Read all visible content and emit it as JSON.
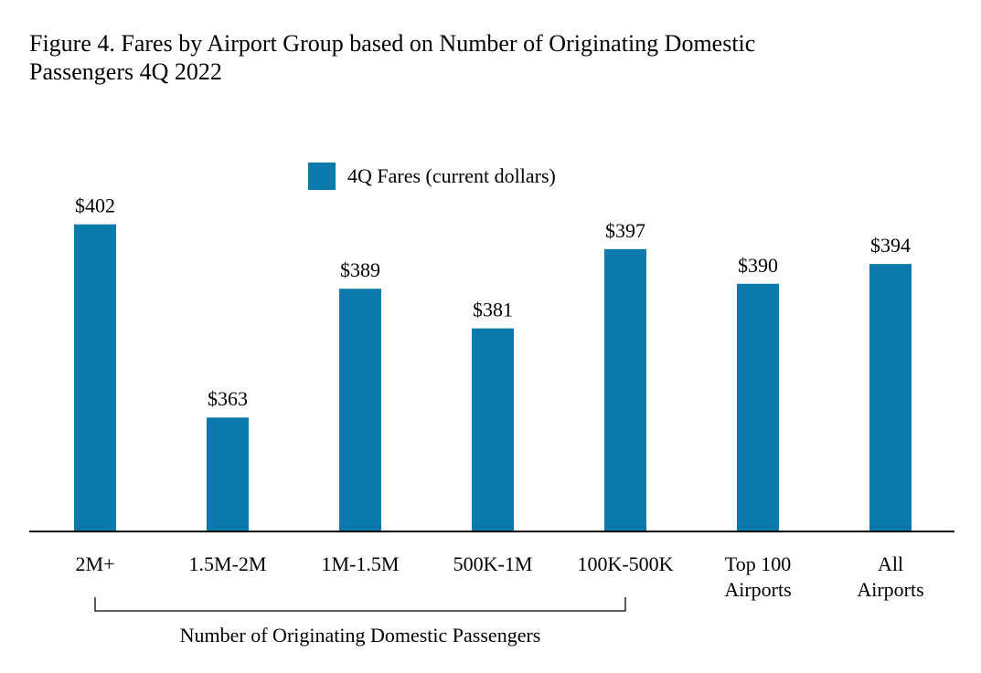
{
  "chart_data": {
    "type": "bar",
    "title_line1": "Figure 4. Fares by Airport Group based on Number of Originating Domestic",
    "title_line2": "Passengers 4Q 2022",
    "legend": "4Q Fares (current dollars)",
    "categories": [
      [
        "2M+"
      ],
      [
        "1.5M-2M"
      ],
      [
        "1M-1.5M"
      ],
      [
        "500K-1M"
      ],
      [
        "100K-500K"
      ],
      [
        "Top 100",
        "Airports"
      ],
      [
        "All",
        "Airports"
      ]
    ],
    "values": [
      402,
      363,
      389,
      381,
      397,
      390,
      394
    ],
    "value_labels": [
      "$402",
      "$363",
      "$389",
      "$381",
      "$397",
      "$390",
      "$394"
    ],
    "ylim": [
      340,
      406
    ],
    "bar_color": "#0a7aad",
    "bracket_label": "Number of Originating Domestic Passengers",
    "bracket_span": [
      0,
      4
    ]
  }
}
